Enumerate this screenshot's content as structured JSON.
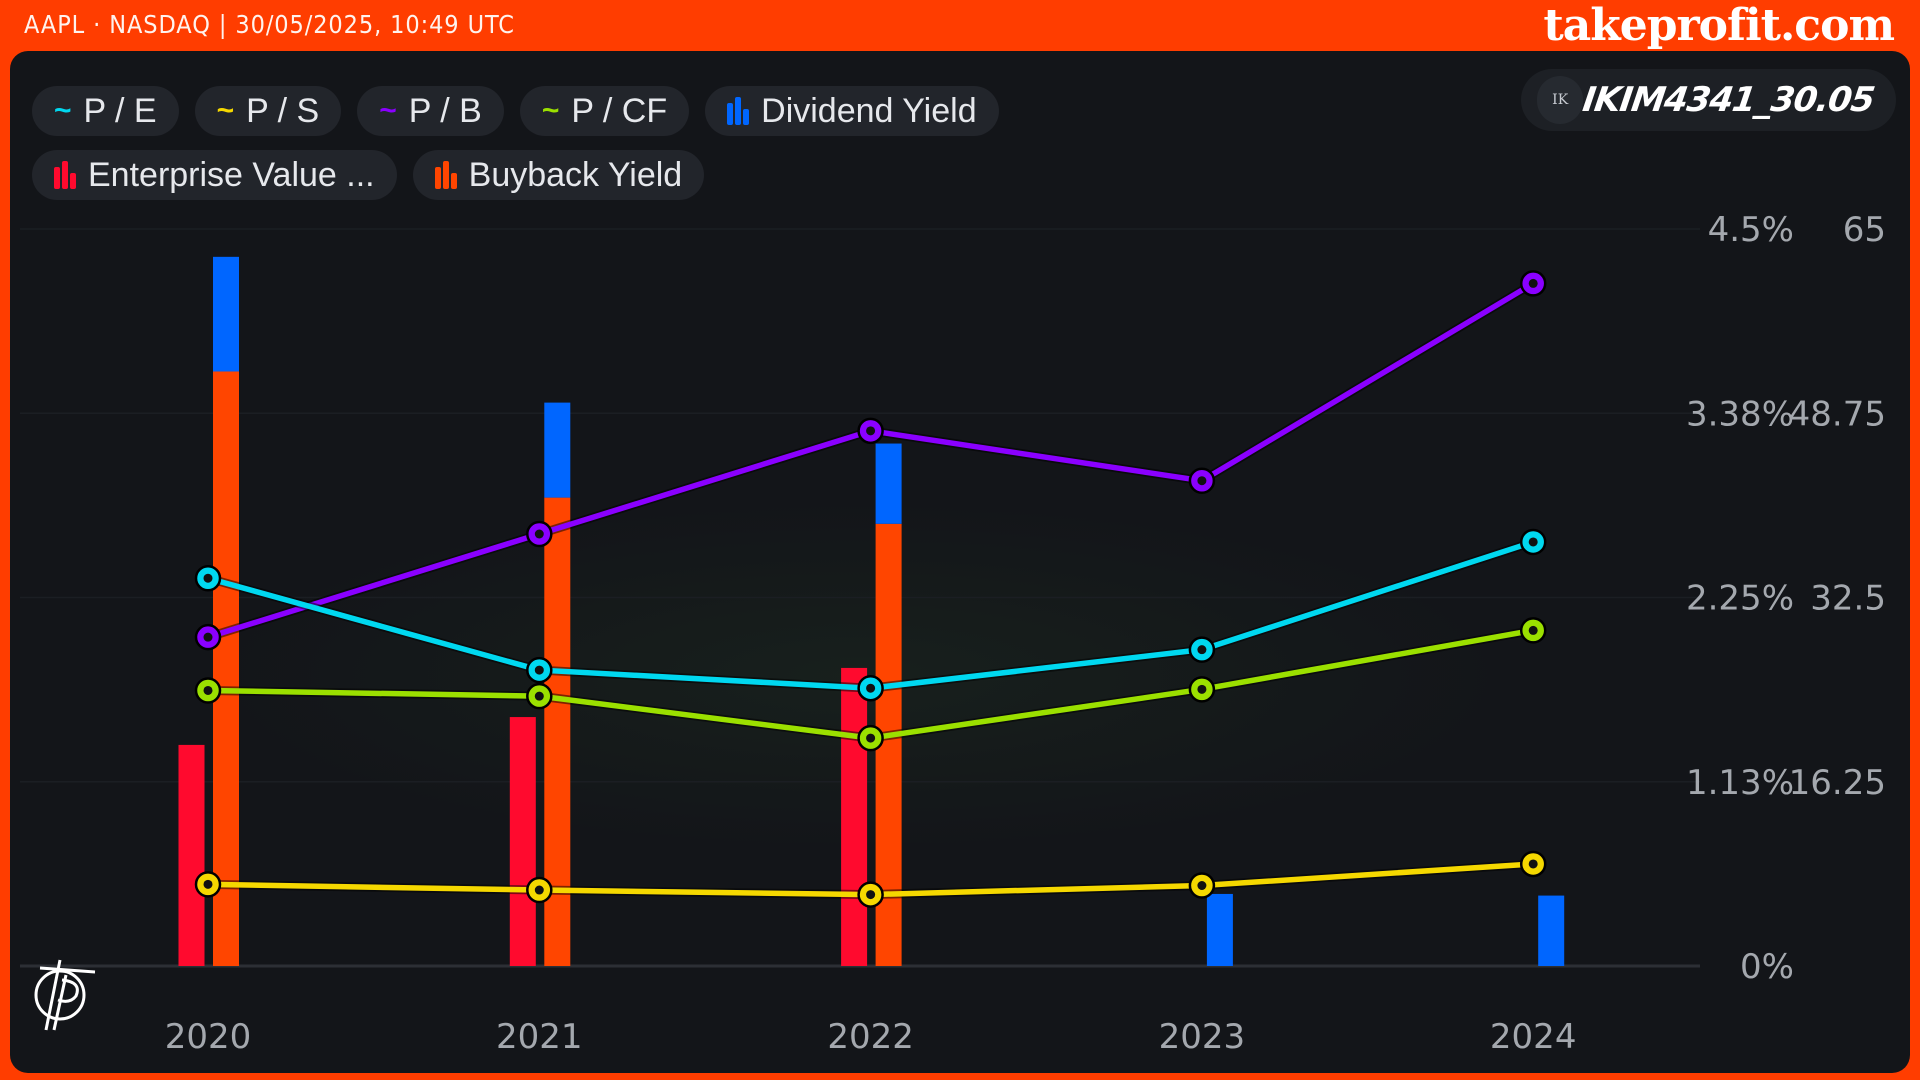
{
  "header": {
    "title": "AAPL · NASDAQ | 30/05/2025, 10:49 UTC",
    "brand": "takeprofit.com"
  },
  "user": {
    "initials": "IK",
    "name": "IKIM4341_30.05"
  },
  "legend": [
    {
      "label": "P / E",
      "icon": "line-icon",
      "color": "#00d8f0"
    },
    {
      "label": "P / S",
      "icon": "line-icon",
      "color": "#f5d800"
    },
    {
      "label": "P / B",
      "icon": "line-icon",
      "color": "#8a00ff"
    },
    {
      "label": "P / CF",
      "icon": "line-icon",
      "color": "#9be000"
    },
    {
      "label": "Dividend Yield",
      "icon": "bars-icon",
      "color": "#0066ff"
    },
    {
      "label": "Enterprise Value ...",
      "icon": "bars-icon",
      "color": "#ff0a2e"
    },
    {
      "label": "Buyback Yield",
      "icon": "bars-icon",
      "color": "#ff4500"
    }
  ],
  "chart_data": {
    "type": "bar+line",
    "categories": [
      "2020",
      "2021",
      "2022",
      "2023",
      "2024"
    ],
    "left_axis": {
      "ticks": [
        "4.5%",
        "3.38%",
        "2.25%",
        "1.13%",
        "0%"
      ],
      "range": [
        0,
        4.5
      ],
      "unit": "%"
    },
    "right_axis": {
      "ticks": [
        "65",
        "48.75",
        "32.5",
        "16.25"
      ],
      "range": [
        0,
        65
      ]
    },
    "bar_series": [
      {
        "name": "Enterprise Value ...",
        "color": "#ff0a2e",
        "axis": "left",
        "values": [
          1.35,
          1.52,
          1.82,
          0,
          0
        ]
      },
      {
        "name": "Buyback Yield",
        "color": "#ff4500",
        "axis": "left",
        "stack": "a",
        "values": [
          3.63,
          2.86,
          2.7,
          0,
          0
        ]
      },
      {
        "name": "Dividend Yield",
        "color": "#0066ff",
        "axis": "left",
        "stack": "a",
        "values": [
          0.7,
          0.58,
          0.49,
          0.44,
          0.43
        ]
      }
    ],
    "line_series": [
      {
        "name": "P / B",
        "color": "#8a00ff",
        "axis": "right",
        "values": [
          29.0,
          38.1,
          47.2,
          42.8,
          60.2
        ]
      },
      {
        "name": "P / E",
        "color": "#00d8f0",
        "axis": "right",
        "values": [
          34.2,
          26.1,
          24.5,
          27.9,
          37.4
        ]
      },
      {
        "name": "P / CF",
        "color": "#9be000",
        "axis": "right",
        "values": [
          24.3,
          23.8,
          20.1,
          24.4,
          29.6
        ]
      },
      {
        "name": "P / S",
        "color": "#f5d800",
        "axis": "right",
        "values": [
          7.2,
          6.7,
          6.3,
          7.1,
          9.0
        ]
      }
    ],
    "grid": true,
    "legend_position": "top-left"
  }
}
